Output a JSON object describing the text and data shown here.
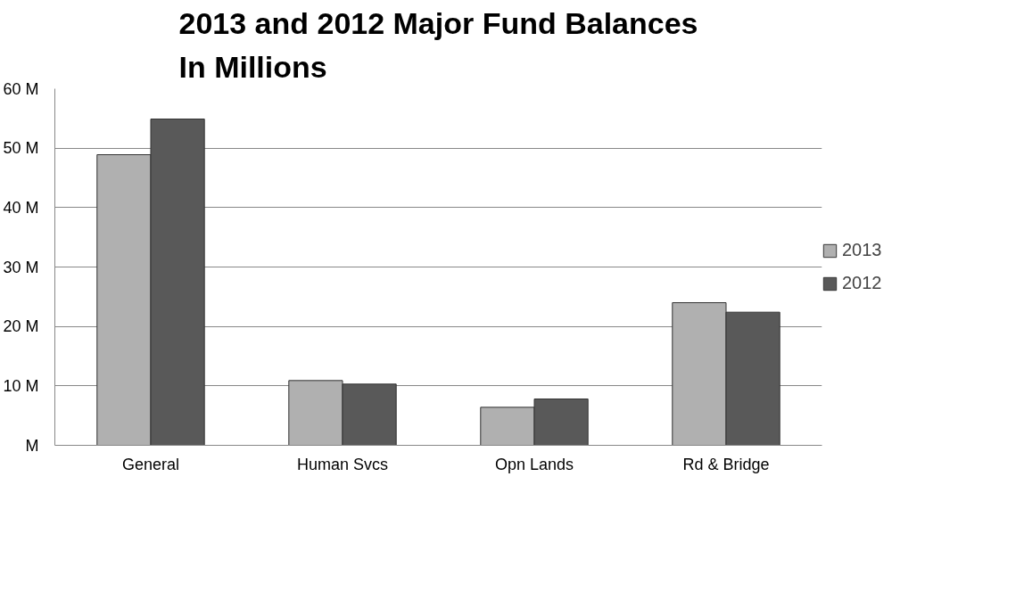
{
  "chart_data": {
    "type": "bar",
    "title": "2013 and 2012 Major Fund Balances\nIn Millions",
    "categories": [
      "General",
      "Human Svcs",
      "Opn Lands",
      "Rd & Bridge"
    ],
    "series": [
      {
        "name": "2013",
        "color": "#b0b0b0",
        "values": [
          48.9,
          10.9,
          6.4,
          24.0
        ]
      },
      {
        "name": "2012",
        "color": "#595959",
        "values": [
          54.9,
          10.3,
          7.8,
          22.4
        ]
      }
    ],
    "ylim": [
      0,
      60
    ],
    "yticks": [
      {
        "value": 0,
        "label": "M"
      },
      {
        "value": 10,
        "label": "10 M"
      },
      {
        "value": 20,
        "label": "20 M"
      },
      {
        "value": 30,
        "label": "30 M"
      },
      {
        "value": 40,
        "label": "40 M"
      },
      {
        "value": 50,
        "label": "50 M"
      },
      {
        "value": 60,
        "label": "60 M"
      }
    ],
    "grid": "y",
    "legend": "right"
  }
}
